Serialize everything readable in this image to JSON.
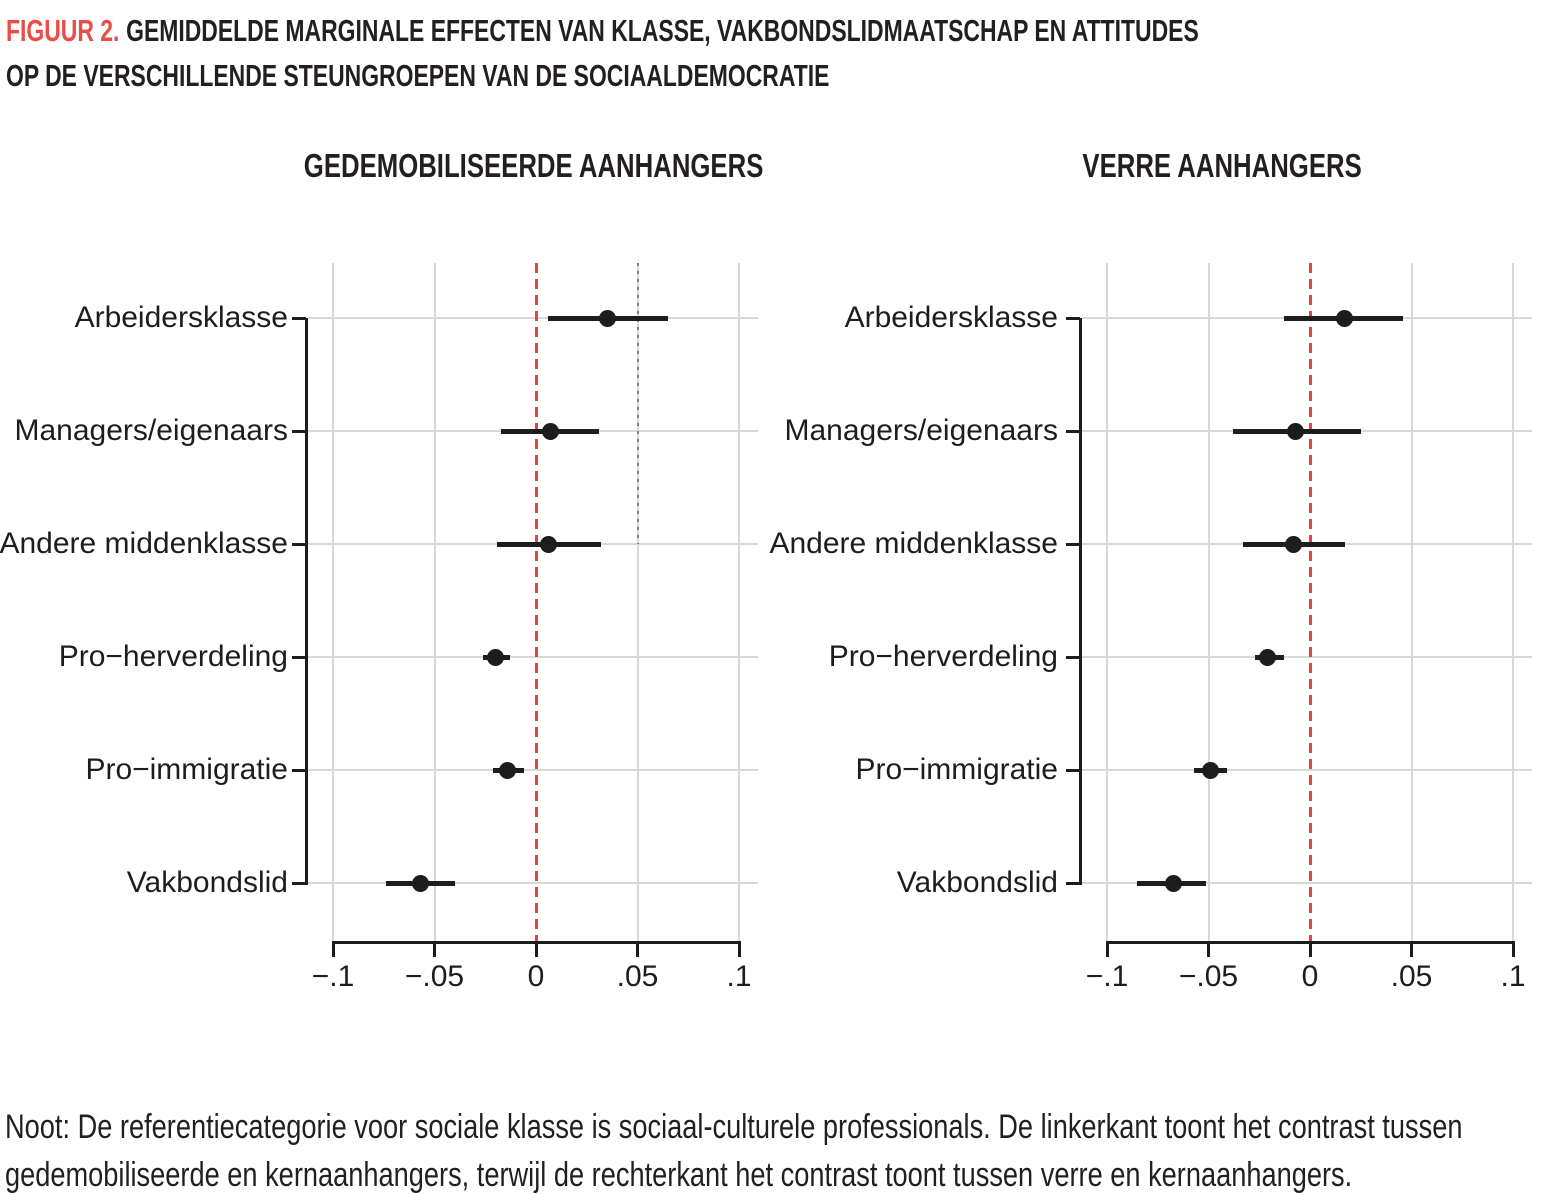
{
  "title": {
    "label": "FIGUUR 2.",
    "line1": "GEMIDDELDE MARGINALE EFFECTEN VAN KLASSE, VAKBONDSLIDMAATSCHAP EN ATTITUDES",
    "line2": "OP DE VERSCHILLENDE STEUNGROEPEN VAN DE SOCIAALDEMOCRATIE"
  },
  "note": {
    "line1": "Noot: De referentiecategorie voor sociale klasse is sociaal-culturele professionals. De linkerkant toont het contrast tussen",
    "line2": "gedemobiliseerde en kernaanhangers, terwijl de rechterkant het contrast toont tussen verre en kernaanhangers."
  },
  "colors": {
    "accent_red": "#ea4c47",
    "zero_line_red": "#e8433c",
    "text_black": "#231f20",
    "data_black": "#1d1d1d",
    "gridline_gray": "#d8d8d8",
    "dotted_line_gray": "#818181"
  },
  "chart_data": {
    "type": "scatter",
    "subtype": "dot-and-whisker coefficient plot, horizontal",
    "grid": "on",
    "categories": [
      "Arbeidersklasse",
      "Managers/eigenaars",
      "Andere middenklasse",
      "Pro−herverdeling",
      "Pro−immigratie",
      "Vakbondslid"
    ],
    "x_axis": {
      "min": -0.1,
      "max": 0.1,
      "ticks": [
        -0.1,
        -0.05,
        0,
        0.05,
        0.1
      ],
      "tick_labels": [
        "−.1",
        "−.05",
        "0",
        ".05",
        ".1"
      ]
    },
    "zero_reference_line": {
      "x": 0,
      "style": "dashed",
      "color": "#e8433c"
    },
    "panels": [
      {
        "title": "GEDEMOBILISEERDE AANHANGERS",
        "estimates": [
          0.035,
          0.007,
          0.006,
          -0.02,
          -0.014,
          -0.057
        ],
        "ci_low": [
          0.006,
          -0.017,
          -0.019,
          -0.026,
          -0.021,
          -0.074
        ],
        "ci_high": [
          0.065,
          0.031,
          0.032,
          -0.013,
          -0.006,
          -0.04
        ],
        "extra_dotted_reference_line": {
          "x": 0.05,
          "extent": "upper three rows"
        }
      },
      {
        "title": "VERRE AANHANGERS",
        "estimates": [
          0.017,
          -0.007,
          -0.008,
          -0.021,
          -0.049,
          -0.067
        ],
        "ci_low": [
          -0.013,
          -0.038,
          -0.033,
          -0.027,
          -0.057,
          -0.085
        ],
        "ci_high": [
          0.046,
          0.025,
          0.017,
          -0.013,
          -0.041,
          -0.051
        ]
      }
    ]
  }
}
